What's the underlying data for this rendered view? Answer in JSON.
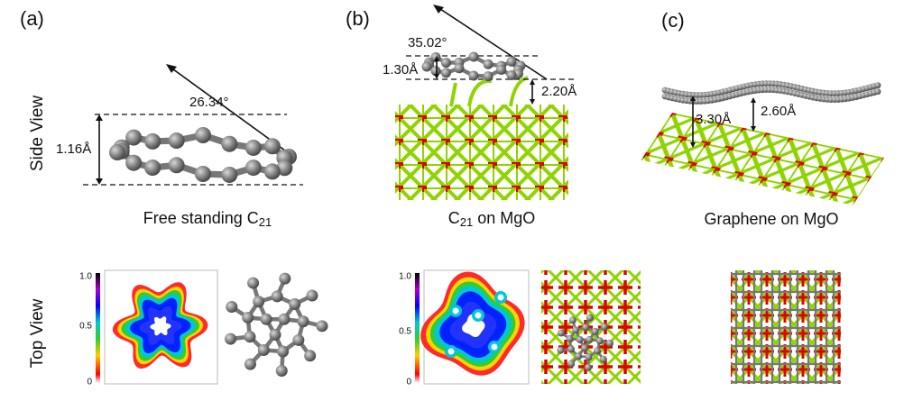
{
  "row_labels": [
    "Side View",
    "Top View"
  ],
  "panels": [
    {
      "label": "(a)",
      "caption": {
        "text": "Free standing C",
        "subscript": "21"
      },
      "angle": "26.34°",
      "heights": [
        "1.16Å"
      ],
      "colorbar_ticks": [
        "1.0",
        "0.5",
        "0"
      ]
    },
    {
      "label": "(b)",
      "caption": {
        "text": "C",
        "subscript": "21",
        "suffix": "on MgO"
      },
      "angle": "35.02°",
      "heights": [
        "1.30Å",
        "2.20Å"
      ],
      "colorbar_ticks": [
        "1.0",
        "0.5",
        "0"
      ]
    },
    {
      "label": "(c)",
      "caption": {
        "text": "Graphene on MgO"
      },
      "heights": [
        "3.30Å",
        "2.60Å"
      ]
    }
  ]
}
